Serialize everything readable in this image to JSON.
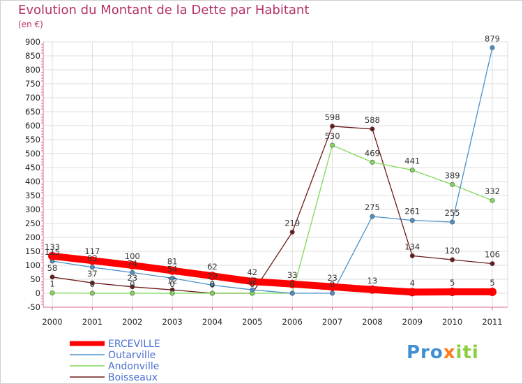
{
  "chart_data": {
    "type": "line",
    "title": "Evolution du Montant de la Dette par Habitant",
    "subtitle": "(en €)",
    "categories": [
      "2000",
      "2001",
      "2002",
      "2003",
      "2004",
      "2005",
      "2006",
      "2007",
      "2008",
      "2009",
      "2010",
      "2011"
    ],
    "ylim": [
      -50,
      900
    ],
    "yticks": [
      -50,
      0,
      50,
      100,
      150,
      200,
      250,
      300,
      350,
      400,
      450,
      500,
      550,
      600,
      650,
      700,
      750,
      800,
      850,
      900
    ],
    "grid": true,
    "legend_position": "bottom-left",
    "series": [
      {
        "name": "ERCEVILLE",
        "color": "#ff0000",
        "values": [
          133,
          117,
          100,
          81,
          62,
          42,
          33,
          23,
          13,
          4,
          5,
          5
        ],
        "labels": [
          "133",
          "117",
          "100",
          "81",
          "62",
          "42",
          "33",
          "23",
          "13",
          "4",
          "5",
          "5"
        ]
      },
      {
        "name": "Outarville",
        "color": "#4a90c8",
        "values": [
          115,
          93,
          74,
          54,
          29,
          12,
          0,
          0,
          275,
          261,
          255,
          879
        ],
        "labels": [
          "115",
          "93",
          "74",
          "54",
          "29",
          "12",
          "0",
          "0",
          "275",
          "261",
          "255",
          "879"
        ]
      },
      {
        "name": "Andonville",
        "color": "#7ed957",
        "values": [
          1,
          0,
          0,
          0,
          0,
          0,
          0,
          530,
          469,
          441,
          389,
          332
        ],
        "labels": [
          "1",
          "0",
          "0",
          "0",
          "0",
          "0",
          "0",
          "530",
          "469",
          "441",
          "389",
          "332"
        ]
      },
      {
        "name": "Boisseaux",
        "color": "#6b1a1a",
        "values": [
          58,
          37,
          23,
          12,
          0,
          0,
          219,
          598,
          588,
          134,
          120,
          106
        ],
        "labels": [
          "58",
          "37",
          "23",
          "12",
          "0",
          "0",
          "219",
          "598",
          "588",
          "134",
          "120",
          "106"
        ]
      }
    ],
    "logo": {
      "text_a": "Pro",
      "text_b": "x",
      "text_c": "iti"
    }
  }
}
